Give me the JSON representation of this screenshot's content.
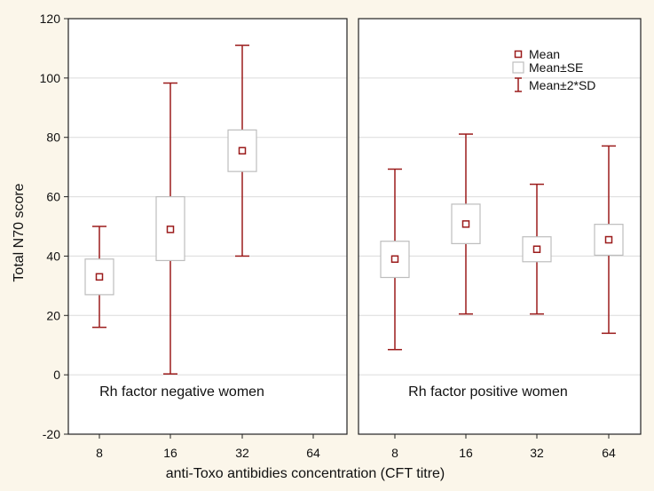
{
  "chart_data": {
    "type": "box",
    "ylabel": "Total N70 score",
    "xlabel": "anti-Toxo antibidies concentration (CFT titre)",
    "ylim": [
      -20,
      120
    ],
    "yticks": [
      -20,
      0,
      20,
      40,
      60,
      80,
      100,
      120
    ],
    "categories": [
      "8",
      "16",
      "32",
      "64"
    ],
    "legend": {
      "mean": "Mean",
      "se": "Mean±SE",
      "sd": "Mean±2*SD"
    },
    "colors": {
      "mark": "#9b1b1b",
      "box": "#bdbdbd",
      "grid": "#dcdcdc",
      "panel": "#ffffff",
      "frame": "#222222"
    },
    "panels": [
      {
        "caption": "Rh factor negative women",
        "series": [
          {
            "x": "8",
            "mean": 33,
            "se_low": 27,
            "se_high": 39,
            "sd_low": 16,
            "sd_high": 50
          },
          {
            "x": "16",
            "mean": 49,
            "se_low": 38.5,
            "se_high": 60,
            "sd_low": 0.3,
            "sd_high": 98.3
          },
          {
            "x": "32",
            "mean": 75.5,
            "se_low": 68.5,
            "se_high": 82.5,
            "sd_low": 40,
            "sd_high": 111
          }
        ]
      },
      {
        "caption": "Rh factor positive women",
        "series": [
          {
            "x": "8",
            "mean": 39,
            "se_low": 32.8,
            "se_high": 45,
            "sd_low": 8.5,
            "sd_high": 69.3
          },
          {
            "x": "16",
            "mean": 50.8,
            "se_low": 44.2,
            "se_high": 57.5,
            "sd_low": 20.5,
            "sd_high": 81.1
          },
          {
            "x": "32",
            "mean": 42.3,
            "se_low": 38.1,
            "se_high": 46.5,
            "sd_low": 20.5,
            "sd_high": 64.2
          },
          {
            "x": "64",
            "mean": 45.5,
            "se_low": 40.3,
            "se_high": 50.7,
            "sd_low": 14,
            "sd_high": 77.1
          }
        ]
      }
    ]
  }
}
